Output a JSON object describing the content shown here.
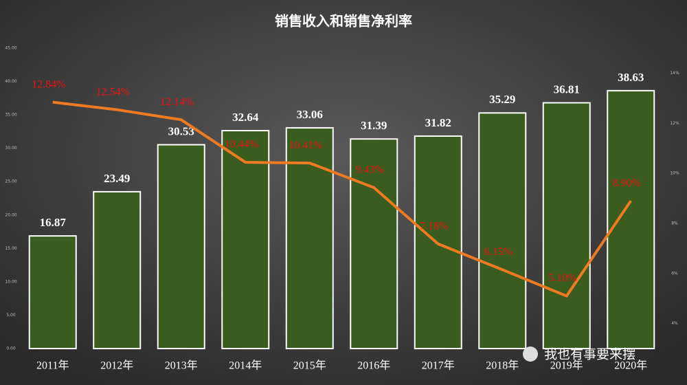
{
  "chart_data": {
    "type": "bar",
    "title": "销售收入和销售净利率",
    "categories": [
      "2011年",
      "2012年",
      "2013年",
      "2014年",
      "2015年",
      "2016年",
      "2017年",
      "2018年",
      "2019年",
      "2020年"
    ],
    "series": [
      {
        "type": "bar",
        "color": "#3b5c1f",
        "values": [
          16.87,
          23.49,
          30.53,
          32.64,
          33.06,
          31.39,
          31.82,
          35.29,
          36.81,
          38.63
        ]
      },
      {
        "type": "line",
        "axis": "y2",
        "color": "#ee7a22",
        "values": [
          12.84,
          12.54,
          12.14,
          10.44,
          10.41,
          9.43,
          7.18,
          6.15,
          5.1,
          8.9
        ],
        "value_labels": [
          "12.84%",
          "12.54%",
          "12.14%",
          "10.44%",
          "10.41%",
          "9.43%",
          "7.18%",
          "6.15%",
          "5.10%",
          "8.90%"
        ]
      }
    ],
    "ylim": [
      0,
      45
    ],
    "yticks": [
      {
        "value": 0,
        "label": "0.00"
      },
      {
        "value": 5,
        "label": "5.00"
      },
      {
        "value": 10,
        "label": "10.00"
      },
      {
        "value": 15,
        "label": "15.00"
      },
      {
        "value": 20,
        "label": "20.00"
      },
      {
        "value": 25,
        "label": "25.00"
      },
      {
        "value": 30,
        "label": "30.00"
      },
      {
        "value": 35,
        "label": "35.00"
      },
      {
        "value": 40,
        "label": "40.00"
      },
      {
        "value": 45,
        "label": "45.00"
      }
    ],
    "y2lim": [
      3,
      15
    ],
    "y2ticks": [
      {
        "value": 4,
        "label": "4%"
      },
      {
        "value": 6,
        "label": "6%"
      },
      {
        "value": 8,
        "label": "8%"
      },
      {
        "value": 10,
        "label": "10%"
      },
      {
        "value": 12,
        "label": "12%"
      },
      {
        "value": 14,
        "label": "14%"
      }
    ],
    "watermark": "我也有事要来摆"
  }
}
